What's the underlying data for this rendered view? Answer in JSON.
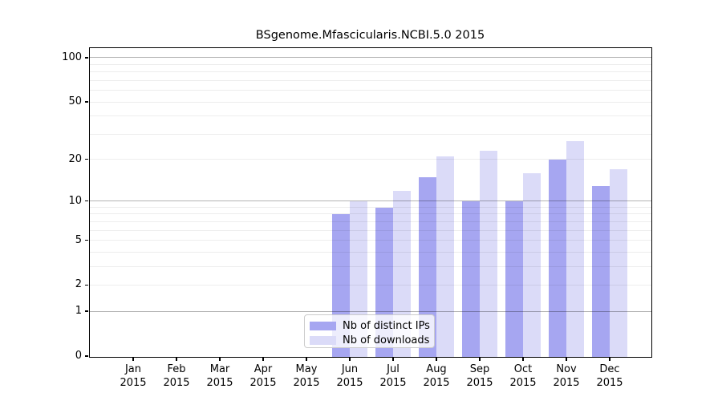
{
  "chart_data": {
    "type": "bar",
    "title": "BSgenome.Mfascicularis.NCBI.5.0 2015",
    "categories": [
      "Jan",
      "Feb",
      "Mar",
      "Apr",
      "May",
      "Jun",
      "Jul",
      "Aug",
      "Sep",
      "Oct",
      "Nov",
      "Dec"
    ],
    "year": "2015",
    "series": [
      {
        "name": "Nb of distinct IPs",
        "color": "#a6a6f1",
        "values": [
          0,
          0,
          0,
          0,
          0,
          8,
          9,
          15,
          10,
          10,
          20,
          13
        ]
      },
      {
        "name": "Nb of downloads",
        "color": "#dbdbf8",
        "values": [
          0,
          0,
          0,
          0,
          0,
          10,
          12,
          21,
          23,
          16,
          27,
          17
        ]
      }
    ],
    "yscale": "log1p",
    "yticks": [
      0,
      1,
      2,
      5,
      10,
      20,
      50,
      100
    ],
    "ytick_labels": [
      "0",
      "1",
      "2",
      "5",
      "10",
      "20",
      "50",
      "100"
    ],
    "major_gridlines": [
      1,
      10,
      100
    ],
    "minor_gridlines": [
      2,
      3,
      4,
      5,
      6,
      7,
      8,
      9,
      20,
      30,
      40,
      50,
      60,
      70,
      80,
      90
    ],
    "ylim": [
      0,
      116
    ],
    "grid": true,
    "legend_position": "bottom-center",
    "xlabel": "",
    "ylabel": ""
  }
}
